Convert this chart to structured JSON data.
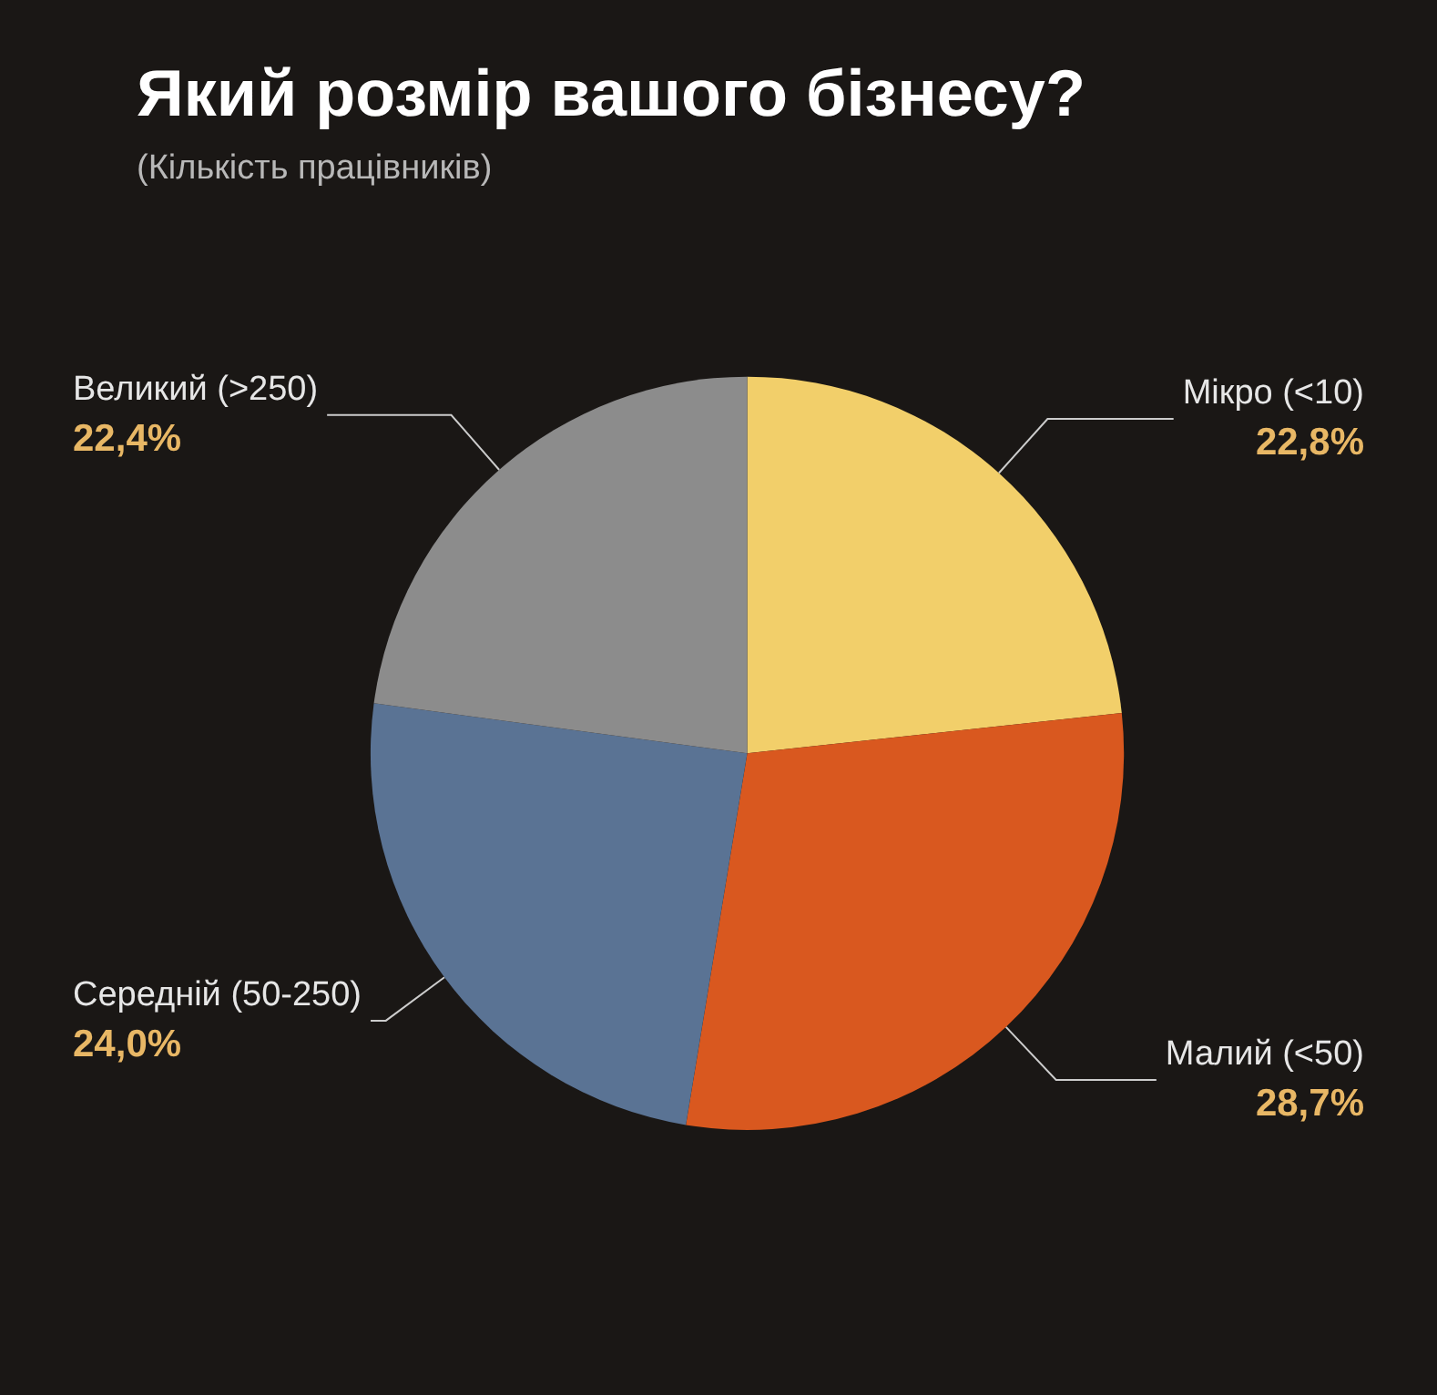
{
  "chart_data": {
    "type": "pie",
    "title": "Який розмір вашого бізнесу?",
    "subtitle": "(Кількість працівників)",
    "categories": [
      "Мікро (<10)",
      "Малий (<50)",
      "Середній (50-250)",
      "Великий (>250)"
    ],
    "values": [
      22.8,
      28.7,
      24.0,
      22.4
    ],
    "colors": [
      "#f2cf6a",
      "#d9581f",
      "#5a7394",
      "#8c8c8c"
    ],
    "value_labels": [
      "22,8%",
      "28,7%",
      "24,0%",
      "22,4%"
    ]
  }
}
